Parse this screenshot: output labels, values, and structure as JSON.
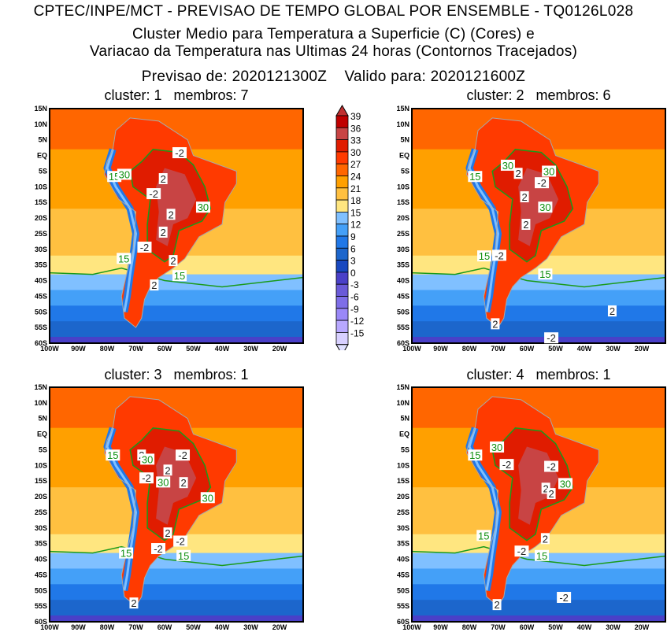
{
  "header": {
    "line1": "CPTEC/INPE/MCT - PREVISAO DE TEMPO GLOBAL POR ENSEMBLE - TQ0126L028",
    "line2": "Cluster Medio para Temperatura a Superficie (C) (Cores) e",
    "line3": "Variacao da Temperatura nas Ultimas 24 horas (Contornos Tracejados)",
    "line4": "Previsao de: 2020121300Z    Valido para: 2020121600Z"
  },
  "axes": {
    "lat_labels": [
      "15N",
      "10N",
      "5N",
      "EQ",
      "5S",
      "10S",
      "15S",
      "20S",
      "25S",
      "30S",
      "35S",
      "40S",
      "45S",
      "50S",
      "55S",
      "60S"
    ],
    "lat_values": [
      15,
      10,
      5,
      0,
      -5,
      -10,
      -15,
      -20,
      -25,
      -30,
      -35,
      -40,
      -45,
      -50,
      -55,
      -60
    ],
    "lon_labels": [
      "100W",
      "90W",
      "80W",
      "70W",
      "60W",
      "50W",
      "40W",
      "30W",
      "20W"
    ],
    "lon_values": [
      -100,
      -90,
      -80,
      -70,
      -60,
      -50,
      -40,
      -30,
      -20
    ],
    "lon_range": [
      -100,
      -11.8
    ],
    "lat_range": [
      -60,
      15
    ]
  },
  "colorbar": {
    "labels": [
      "39",
      "36",
      "33",
      "30",
      "27",
      "24",
      "21",
      "18",
      "15",
      "12",
      "9",
      "6",
      "3",
      "0",
      "-3",
      "-6",
      "-9",
      "-12",
      "-15"
    ],
    "colors": [
      "#c00000",
      "#c84444",
      "#e01c00",
      "#ff3a00",
      "#ff6600",
      "#ffa000",
      "#ffc040",
      "#ffe680",
      "#80c0ff",
      "#44a0f8",
      "#2078e8",
      "#1c66cc",
      "#1848c0",
      "#4a40c8",
      "#6a5ad8",
      "#7e6ee8",
      "#9a88f8",
      "#b8a8ff",
      "#d8d0ff"
    ],
    "over_color": "#c03030",
    "under_color": "#e0e0ff"
  },
  "panels": [
    {
      "title": "cluster: 1   membros: 7",
      "labels": [
        {
          "t": "15",
          "c": "g",
          "lon": -77.5,
          "lat": -6.7
        },
        {
          "t": "30",
          "c": "g",
          "lon": -74,
          "lat": -6
        },
        {
          "t": "-2",
          "c": "w",
          "lon": -54.8,
          "lat": 0.9
        },
        {
          "t": "2",
          "c": "w",
          "lon": -60.5,
          "lat": -7.4
        },
        {
          "t": "-2",
          "c": "w",
          "lon": -63.8,
          "lat": -12.2
        },
        {
          "t": "30",
          "c": "g",
          "lon": -46.6,
          "lat": -16.5
        },
        {
          "t": "2",
          "c": "w",
          "lon": -57.8,
          "lat": -18.8
        },
        {
          "t": "2",
          "c": "w",
          "lon": -60.5,
          "lat": -24.5
        },
        {
          "t": "-2",
          "c": "w",
          "lon": -67,
          "lat": -29.3
        },
        {
          "t": "15",
          "c": "g",
          "lon": -74.2,
          "lat": -32.9
        },
        {
          "t": "2",
          "c": "w",
          "lon": -57,
          "lat": -33.6
        },
        {
          "t": "15",
          "c": "g",
          "lon": -54.8,
          "lat": -38.4
        },
        {
          "t": "2",
          "c": "w",
          "lon": -63.6,
          "lat": -41.4
        }
      ]
    },
    {
      "title": "cluster: 2   membros: 6",
      "labels": [
        {
          "t": "15",
          "c": "g",
          "lon": -78,
          "lat": -6.7
        },
        {
          "t": "30",
          "c": "g",
          "lon": -66.6,
          "lat": -3.1
        },
        {
          "t": "2",
          "c": "w",
          "lon": -63,
          "lat": -5.7
        },
        {
          "t": "30",
          "c": "g",
          "lon": -52.3,
          "lat": -5
        },
        {
          "t": "-2",
          "c": "w",
          "lon": -54.8,
          "lat": -8.7
        },
        {
          "t": "2",
          "c": "w",
          "lon": -60.8,
          "lat": -13.2
        },
        {
          "t": "30",
          "c": "g",
          "lon": -53.6,
          "lat": -16.5
        },
        {
          "t": "2",
          "c": "w",
          "lon": -60.3,
          "lat": -22
        },
        {
          "t": "-2",
          "c": "w",
          "lon": -69.6,
          "lat": -31.9
        },
        {
          "t": "15",
          "c": "g",
          "lon": -74.8,
          "lat": -32.1
        },
        {
          "t": "15",
          "c": "g",
          "lon": -53.6,
          "lat": -37.9
        },
        {
          "t": "2",
          "c": "w",
          "lon": -30.3,
          "lat": -49.7
        },
        {
          "t": "2",
          "c": "w",
          "lon": -71,
          "lat": -53.8
        },
        {
          "t": "-2",
          "c": "w",
          "lon": -51.5,
          "lat": -58.3
        }
      ]
    },
    {
      "title": "cluster: 3   membros: 1",
      "labels": [
        {
          "t": "15",
          "c": "g",
          "lon": -78,
          "lat": -6.7
        },
        {
          "t": "2",
          "c": "w",
          "lon": -68,
          "lat": -6.7
        },
        {
          "t": "30",
          "c": "g",
          "lon": -66,
          "lat": -8
        },
        {
          "t": "-2",
          "c": "w",
          "lon": -53.7,
          "lat": -6.7
        },
        {
          "t": "2",
          "c": "w",
          "lon": -58.9,
          "lat": -11.5
        },
        {
          "t": "-2",
          "c": "w",
          "lon": -66.3,
          "lat": -14
        },
        {
          "t": "30",
          "c": "g",
          "lon": -60.5,
          "lat": -15.3
        },
        {
          "t": "2",
          "c": "w",
          "lon": -53.4,
          "lat": -15.5
        },
        {
          "t": "30",
          "c": "g",
          "lon": -45,
          "lat": -20.3
        },
        {
          "t": "2",
          "c": "w",
          "lon": -58.9,
          "lat": -31.6
        },
        {
          "t": "-2",
          "c": "w",
          "lon": -54.5,
          "lat": -34.2
        },
        {
          "t": "-2",
          "c": "w",
          "lon": -62.2,
          "lat": -36.6
        },
        {
          "t": "15",
          "c": "g",
          "lon": -73.4,
          "lat": -38
        },
        {
          "t": "15",
          "c": "g",
          "lon": -53.4,
          "lat": -38.8
        },
        {
          "t": "2",
          "c": "w",
          "lon": -70.7,
          "lat": -54
        }
      ]
    },
    {
      "title": "cluster: 4   membros: 1",
      "labels": [
        {
          "t": "15",
          "c": "g",
          "lon": -78,
          "lat": -6.7
        },
        {
          "t": "30",
          "c": "g",
          "lon": -70.4,
          "lat": -4.1
        },
        {
          "t": "-2",
          "c": "w",
          "lon": -67,
          "lat": -9.7
        },
        {
          "t": "-2",
          "c": "w",
          "lon": -51.5,
          "lat": -10.3
        },
        {
          "t": "30",
          "c": "g",
          "lon": -46.6,
          "lat": -15.8
        },
        {
          "t": "2",
          "c": "w",
          "lon": -53.4,
          "lat": -17.3
        },
        {
          "t": "2",
          "c": "w",
          "lon": -51.5,
          "lat": -19
        },
        {
          "t": "2",
          "c": "w",
          "lon": -53.6,
          "lat": -33.4
        },
        {
          "t": "-2",
          "c": "w",
          "lon": -61.8,
          "lat": -37.4
        },
        {
          "t": "15",
          "c": "g",
          "lon": -75,
          "lat": -32.4
        },
        {
          "t": "15",
          "c": "g",
          "lon": -54.8,
          "lat": -38.8
        },
        {
          "t": "-2",
          "c": "w",
          "lon": -47.1,
          "lat": -52.2
        },
        {
          "t": "2",
          "c": "w",
          "lon": -70.4,
          "lat": -54.5
        }
      ]
    }
  ]
}
